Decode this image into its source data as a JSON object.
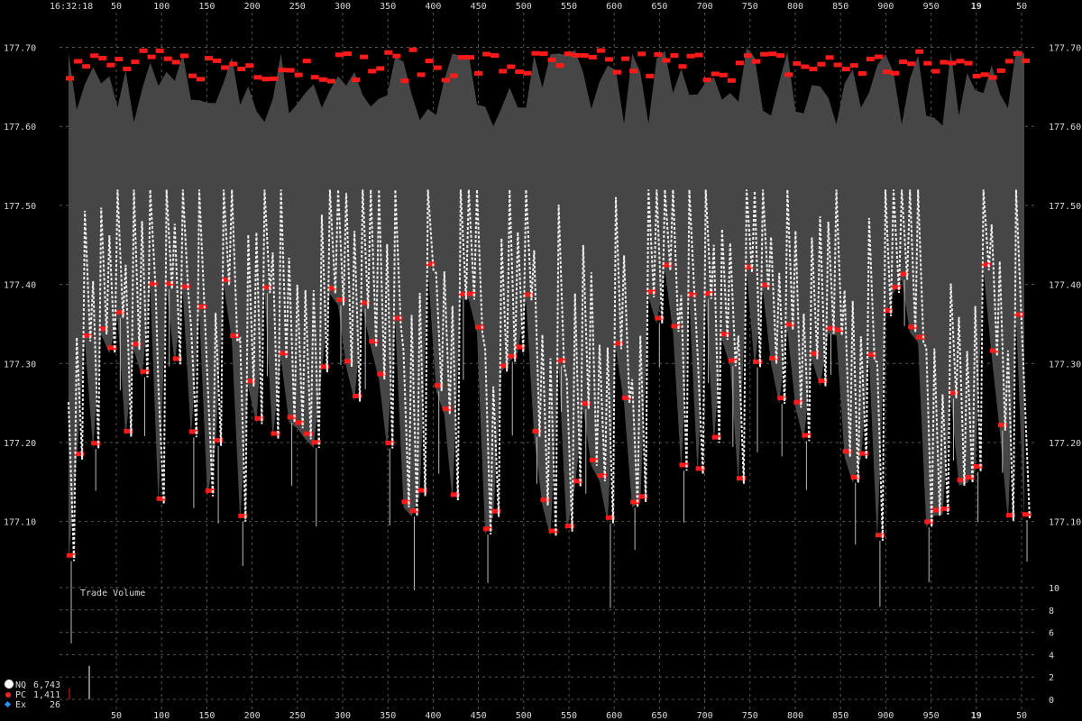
{
  "header": {
    "time": "16:32:18",
    "day": "19"
  },
  "legend": [
    {
      "symbol": "NQ",
      "count": "6,743",
      "color": "#ffffff"
    },
    {
      "symbol": "PC",
      "count": "1,411",
      "color": "#ff2020"
    },
    {
      "symbol": "Ex",
      "count": "26",
      "color": "#2f8fff"
    }
  ],
  "chart_data": [
    {
      "type": "line",
      "title": "",
      "x": {
        "ticks": [
          "50",
          "100",
          "150",
          "200",
          "250",
          "300",
          "350",
          "400",
          "450",
          "500",
          "550",
          "600",
          "650",
          "700",
          "750",
          "800",
          "850",
          "900",
          "950",
          "19",
          "50"
        ]
      },
      "y": {
        "range": [
          177.03,
          177.72
        ],
        "ticks": [
          "177.70",
          "177.60",
          "177.50",
          "177.40",
          "177.30",
          "177.20",
          "177.10"
        ],
        "tick_values": [
          177.7,
          177.6,
          177.5,
          177.4,
          177.3,
          177.2,
          177.1
        ]
      },
      "series": [
        {
          "name": "NQ",
          "color": "#ffffff"
        },
        {
          "name": "PC",
          "color": "#ff2020"
        }
      ],
      "grid": true
    },
    {
      "type": "bar",
      "title": "Trade Volume",
      "y": {
        "range": [
          0,
          10
        ],
        "ticks": [
          "10",
          "8",
          "6",
          "4",
          "2",
          "0"
        ],
        "tick_values": [
          10,
          8,
          6,
          4,
          2,
          0
        ]
      },
      "grid": true
    }
  ]
}
